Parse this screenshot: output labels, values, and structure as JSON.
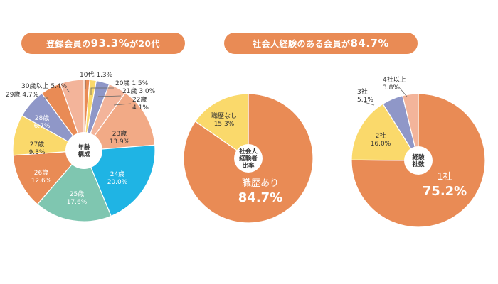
{
  "headlines": [
    {
      "prefix": "登録会員の",
      "highlight": "93.3%",
      "suffix": "が20代"
    },
    {
      "prefix": "社会人経験のある会員が",
      "highlight": "84.7%",
      "suffix": ""
    }
  ],
  "colors": {
    "pill": "#e98b55",
    "orange": "#e98b55",
    "light_orange": "#f2aa86",
    "salmon": "#f3b49a",
    "yellow": "#fad96b",
    "purple": "#8f97c8",
    "blue": "#1fb4e4",
    "green": "#7fc6b0"
  },
  "chart_data": [
    {
      "type": "pie",
      "center_label": "年齢\n構成",
      "slices": [
        {
          "label": "10代",
          "value": 1.3,
          "display": "1.3%",
          "color": "#e98b55"
        },
        {
          "label": "20歳",
          "value": 1.5,
          "display": "1.5%",
          "color": "#fad96b"
        },
        {
          "label": "21歳",
          "value": 3.0,
          "display": "3.0%",
          "color": "#8f97c8"
        },
        {
          "label": "22歳",
          "value": 4.1,
          "display": "4.1%",
          "color": "#f3b49a"
        },
        {
          "label": "23歳",
          "value": 13.9,
          "display": "13.9%",
          "color": "#f2aa86"
        },
        {
          "label": "24歳",
          "value": 20.0,
          "display": "20.0%",
          "color": "#1fb4e4"
        },
        {
          "label": "25歳",
          "value": 17.6,
          "display": "17.6%",
          "color": "#7fc6b0"
        },
        {
          "label": "26歳",
          "value": 12.6,
          "display": "12.6%",
          "color": "#e98b55"
        },
        {
          "label": "27歳",
          "value": 9.3,
          "display": "9.3%",
          "color": "#fad96b"
        },
        {
          "label": "28歳",
          "value": 6.7,
          "display": "6.7%",
          "color": "#8f97c8"
        },
        {
          "label": "29歳",
          "value": 4.7,
          "display": "4.7%",
          "color": "#e98b55"
        },
        {
          "label": "30歳以上",
          "value": 5.4,
          "display": "5.4%",
          "color": "#f3b49a"
        }
      ]
    },
    {
      "type": "pie",
      "center_label": "社会人\n経験者\n比率",
      "slices": [
        {
          "label": "職歴あり",
          "value": 84.7,
          "display": "84.7%",
          "color": "#e98b55"
        },
        {
          "label": "職歴なし",
          "value": 15.3,
          "display": "15.3%",
          "color": "#fad96b"
        }
      ]
    },
    {
      "type": "pie",
      "center_label": "経験\n社数",
      "slices": [
        {
          "label": "1社",
          "value": 75.2,
          "display": "75.2%",
          "color": "#e98b55"
        },
        {
          "label": "2社",
          "value": 16.0,
          "display": "16.0%",
          "color": "#fad96b"
        },
        {
          "label": "3社",
          "value": 5.1,
          "display": "5.1%",
          "color": "#8f97c8"
        },
        {
          "label": "4社以上",
          "value": 3.8,
          "display": "3.8%",
          "color": "#f3b49a"
        }
      ]
    }
  ]
}
